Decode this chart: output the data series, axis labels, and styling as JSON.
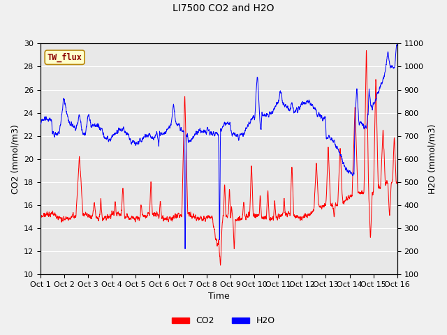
{
  "title": "LI7500 CO2 and H2O",
  "xlabel": "Time",
  "ylabel_left": "CO2 (mmol/m3)",
  "ylabel_right": "H2O (mmol/m3)",
  "ylim_left": [
    10,
    30
  ],
  "ylim_right": [
    100,
    1100
  ],
  "yticks_left": [
    10,
    12,
    14,
    16,
    18,
    20,
    22,
    24,
    26,
    28,
    30
  ],
  "yticks_right": [
    100,
    200,
    300,
    400,
    500,
    600,
    700,
    800,
    900,
    1000,
    1100
  ],
  "xtick_labels": [
    "Oct 1",
    "Oct 2",
    "Oct 3",
    "Oct 4",
    "Oct 5",
    "Oct 6",
    "Oct 7",
    "Oct 8",
    "Oct 9",
    "Oct 10",
    "Oct 11",
    "Oct 12",
    "Oct 13",
    "Oct 14",
    "Oct 15",
    "Oct 16"
  ],
  "legend_labels": [
    "CO2",
    "H2O"
  ],
  "co2_color": "red",
  "h2o_color": "blue",
  "fig_bg_color": "#f0f0f0",
  "plot_bg_color": "#e8e8e8",
  "grid_color": "white",
  "annotation_text": "TW_flux",
  "annotation_fg": "#8b0000",
  "annotation_bg": "#ffffcc",
  "annotation_border": "#b8860b",
  "n_points": 3000
}
